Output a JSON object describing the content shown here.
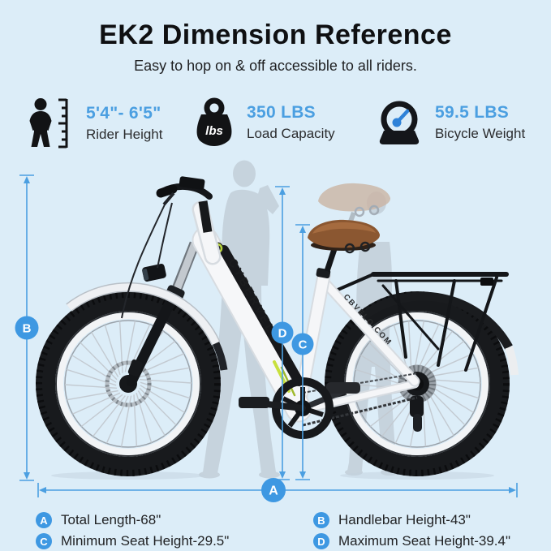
{
  "header": {
    "title": "EK2 Dimension Reference",
    "subtitle": "Easy to hop on & off accessible to all riders."
  },
  "specs": {
    "items": [
      {
        "icon": "rider-height-icon",
        "value": "5'4\"- 6'5\"",
        "label": "Rider Height"
      },
      {
        "icon": "load-capacity-icon",
        "value": "350 LBS",
        "label": "Load Capacity",
        "icon_text": "lbs"
      },
      {
        "icon": "bicycle-weight-icon",
        "value": "59.5 LBS",
        "label": "Bicycle Weight"
      }
    ]
  },
  "bike": {
    "brand_decal": "CYBERVELO",
    "seatstay_decal": "CBVELO.COM"
  },
  "legend": {
    "items": [
      {
        "letter": "A",
        "text": "Total Length-68\""
      },
      {
        "letter": "B",
        "text": "Handlebar Height-43\""
      },
      {
        "letter": "C",
        "text": "Minimum Seat Height-29.5\""
      },
      {
        "letter": "D",
        "text": "Maximum Seat Height-39.4\""
      }
    ]
  },
  "colors": {
    "background": "#dcedf8",
    "accent_blue": "#4b9fe1",
    "badge_blue": "#3e98e2",
    "dimension_line_blue": "#4b9fe1"
  }
}
